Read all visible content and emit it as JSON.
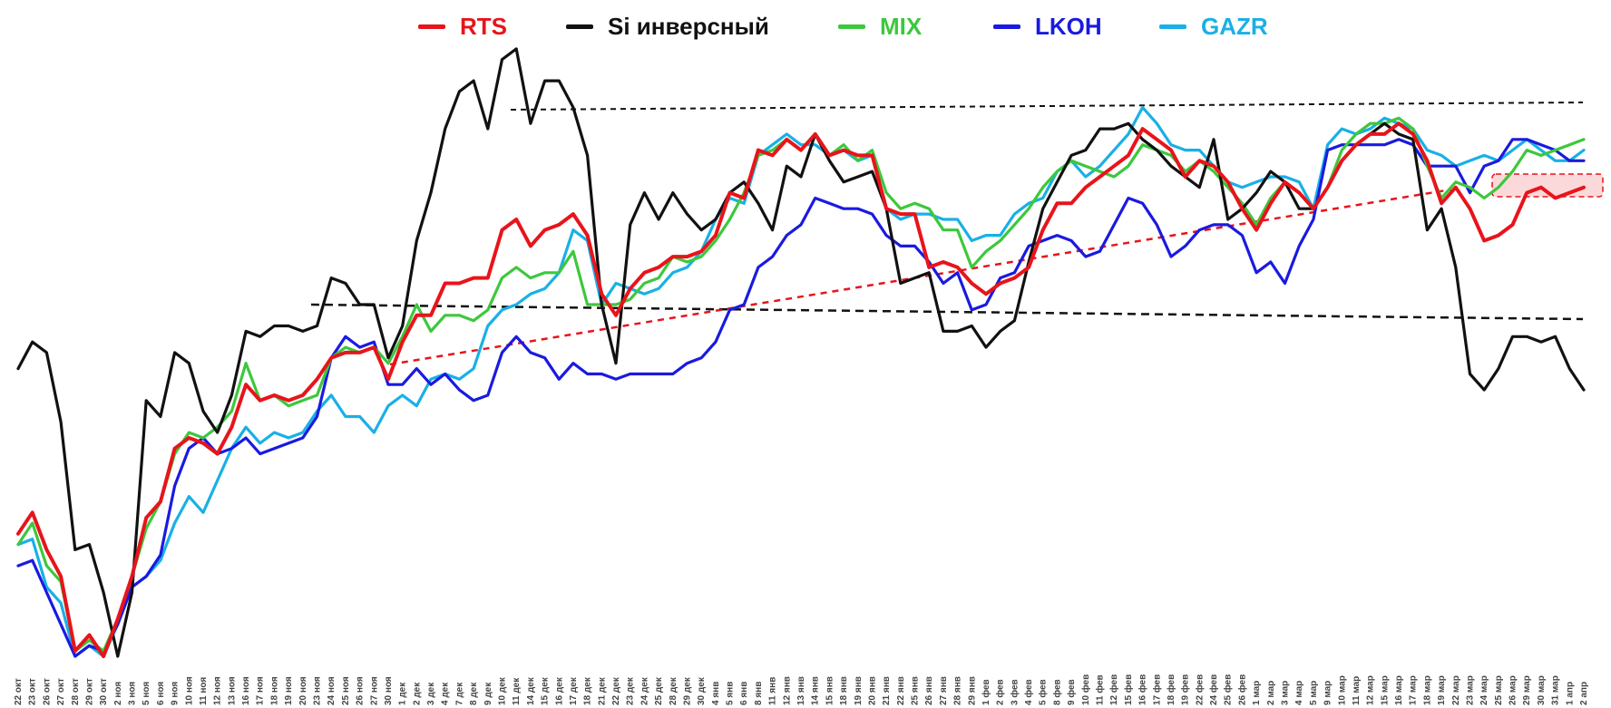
{
  "chart_data": {
    "type": "line",
    "title": "",
    "xlabel": "",
    "ylabel": "",
    "grid": false,
    "legend_placement": "top-center",
    "x": [
      "22 окт",
      "23 окт",
      "26 окт",
      "27 окт",
      "28 окт",
      "29 окт",
      "30 окт",
      "2 ноя",
      "3 ноя",
      "5 ноя",
      "6 ноя",
      "9 ноя",
      "10 ноя",
      "11 ноя",
      "12 ноя",
      "13 ноя",
      "16 ноя",
      "17 ноя",
      "18 ноя",
      "19 ноя",
      "20 ноя",
      "23 ноя",
      "24 ноя",
      "25 ноя",
      "26 ноя",
      "27 ноя",
      "30 ноя",
      "1 дек",
      "2 дек",
      "3 дек",
      "4 дек",
      "7 дек",
      "8 дек",
      "9 дек",
      "10 дек",
      "11 дек",
      "14 дек",
      "15 дек",
      "16 дек",
      "17 дек",
      "18 дек",
      "21 дек",
      "22 дек",
      "23 дек",
      "24 дек",
      "25 дек",
      "28 дек",
      "29 дек",
      "30 дек",
      "4 янв",
      "5 янв",
      "6 янв",
      "8 янв",
      "11 янв",
      "12 янв",
      "13 янв",
      "14 янв",
      "15 янв",
      "18 янв",
      "19 янв",
      "20 янв",
      "21 янв",
      "22 янв",
      "25 янв",
      "26 янв",
      "27 янв",
      "28 янв",
      "29 янв",
      "1 фев",
      "2 фев",
      "3 фев",
      "4 фев",
      "5 фев",
      "8 фев",
      "9 фев",
      "10 фев",
      "11 фев",
      "12 фев",
      "15 фев",
      "16 фев",
      "17 фев",
      "18 фев",
      "19 фев",
      "22 фев",
      "24 фев",
      "25 фев",
      "26 фев",
      "1 мар",
      "2 мар",
      "3 мар",
      "4 мар",
      "5 мар",
      "9 мар",
      "10 мар",
      "11 мар",
      "12 мар",
      "15 мар",
      "16 мар",
      "17 мар",
      "18 мар",
      "19 мар",
      "22 мар",
      "23 мар",
      "24 мар",
      "25 мар",
      "26 мар",
      "29 мар",
      "30 мар",
      "31 мар",
      "1 апр",
      "2 апр"
    ],
    "series": [
      {
        "name": "RTS",
        "color": "#e8141b",
        "values": [
          23,
          27,
          20,
          15,
          1,
          4,
          0,
          7,
          15,
          26,
          29,
          39,
          41,
          40,
          38,
          43,
          51,
          48,
          49,
          48,
          49,
          52,
          56,
          57,
          57,
          58,
          52,
          59,
          64,
          64,
          70,
          70,
          71,
          71,
          80,
          82,
          77,
          80,
          81,
          83,
          79,
          68,
          64,
          69,
          72,
          73,
          75,
          75,
          76,
          79,
          87,
          86,
          95,
          94,
          97,
          95,
          98,
          94,
          95,
          94,
          94,
          84,
          83,
          83,
          73,
          74,
          73,
          70,
          68,
          70,
          71,
          73,
          80,
          85,
          85,
          88,
          90,
          92,
          94,
          99,
          97,
          95,
          90,
          93,
          92,
          89,
          84,
          80,
          85,
          89,
          87,
          84,
          88,
          93,
          96,
          98,
          98,
          100,
          98,
          93,
          85,
          88,
          84,
          78,
          79,
          81,
          87,
          88,
          86,
          87,
          88
        ]
      },
      {
        "name": "Si инверсный",
        "color": "#111111",
        "values": [
          54,
          59,
          57,
          44,
          20,
          21,
          12,
          0,
          12,
          48,
          45,
          57,
          55,
          46,
          42,
          49,
          61,
          60,
          62,
          62,
          61,
          62,
          71,
          70,
          66,
          66,
          56,
          62,
          78,
          87,
          99,
          106,
          108,
          99,
          112,
          114,
          100,
          108,
          108,
          103,
          94,
          66,
          55,
          81,
          87,
          82,
          87,
          83,
          80,
          82,
          87,
          89,
          85,
          80,
          92,
          90,
          98,
          93,
          89,
          90,
          91,
          84,
          70,
          71,
          72,
          61,
          61,
          62,
          58,
          61,
          63,
          74,
          84,
          89,
          94,
          95,
          99,
          99,
          100,
          97,
          95,
          92,
          90,
          88,
          97,
          82,
          84,
          87,
          91,
          89,
          84,
          84,
          88,
          93,
          96,
          98,
          100,
          98,
          97,
          80,
          84,
          73,
          53,
          50,
          54,
          60,
          60,
          59,
          60,
          54,
          50
        ]
      },
      {
        "name": "MIX",
        "color": "#3cc83c",
        "values": [
          21,
          25,
          17,
          14,
          1,
          3,
          1,
          7,
          15,
          24,
          29,
          38,
          42,
          41,
          43,
          46,
          55,
          48,
          49,
          47,
          48,
          49,
          56,
          58,
          57,
          58,
          55,
          60,
          66,
          61,
          64,
          64,
          63,
          65,
          71,
          73,
          71,
          72,
          72,
          76,
          66,
          66,
          66,
          67,
          70,
          71,
          75,
          74,
          75,
          78,
          82,
          87,
          94,
          95,
          97,
          95,
          98,
          94,
          96,
          93,
          95,
          87,
          84,
          85,
          84,
          80,
          80,
          73,
          76,
          78,
          81,
          84,
          88,
          91,
          93,
          92,
          91,
          90,
          92,
          96,
          95,
          94,
          91,
          93,
          91,
          88,
          85,
          81,
          86,
          89,
          87,
          84,
          88,
          95,
          98,
          100,
          100,
          101,
          99,
          92,
          86,
          89,
          88,
          86,
          88,
          91,
          95,
          94,
          95,
          96,
          97
        ]
      },
      {
        "name": "LKOH",
        "color": "#1a1ae0",
        "values": [
          17,
          18,
          12,
          6,
          0,
          2,
          1,
          6,
          13,
          15,
          19,
          32,
          39,
          41,
          38,
          39,
          41,
          38,
          39,
          40,
          41,
          45,
          56,
          60,
          58,
          59,
          51,
          51,
          54,
          51,
          53,
          50,
          48,
          49,
          57,
          60,
          57,
          56,
          52,
          55,
          53,
          53,
          52,
          53,
          53,
          53,
          53,
          55,
          56,
          59,
          65,
          66,
          73,
          75,
          79,
          81,
          86,
          85,
          84,
          84,
          83,
          79,
          77,
          77,
          74,
          70,
          72,
          65,
          66,
          71,
          72,
          77,
          78,
          79,
          78,
          75,
          76,
          81,
          86,
          85,
          81,
          75,
          77,
          80,
          81,
          81,
          79,
          72,
          74,
          70,
          77,
          82,
          95,
          96,
          96,
          96,
          96,
          97,
          96,
          92,
          92,
          92,
          87,
          92,
          93,
          97,
          97,
          96,
          95,
          93,
          93
        ]
      },
      {
        "name": "GAZR",
        "color": "#19b0e6",
        "values": [
          21,
          22,
          13,
          10,
          0,
          2,
          0,
          6,
          13,
          15,
          18,
          25,
          30,
          27,
          33,
          39,
          43,
          40,
          42,
          41,
          42,
          46,
          49,
          45,
          45,
          42,
          47,
          49,
          47,
          52,
          53,
          52,
          54,
          62,
          65,
          66,
          68,
          69,
          72,
          80,
          78,
          66,
          70,
          69,
          68,
          69,
          72,
          73,
          76,
          82,
          86,
          85,
          94,
          96,
          98,
          96,
          96,
          94,
          95,
          93,
          94,
          84,
          82,
          83,
          83,
          82,
          82,
          78,
          79,
          79,
          83,
          85,
          86,
          91,
          93,
          90,
          92,
          95,
          98,
          103,
          100,
          96,
          95,
          95,
          92,
          89,
          88,
          89,
          90,
          90,
          89,
          84,
          96,
          99,
          98,
          99,
          101,
          100,
          99,
          95,
          94,
          92,
          93,
          94,
          93,
          95,
          97,
          95,
          93,
          93,
          95
        ]
      }
    ]
  },
  "legend": [
    {
      "label": "RTS",
      "color": "#e8141b"
    },
    {
      "label": "Si инверсный",
      "color": "#111111"
    },
    {
      "label": "MIX",
      "color": "#3cc83c"
    },
    {
      "label": "LKOH",
      "color": "#1a1ae0"
    },
    {
      "label": "GAZR",
      "color": "#19b0e6"
    }
  ]
}
